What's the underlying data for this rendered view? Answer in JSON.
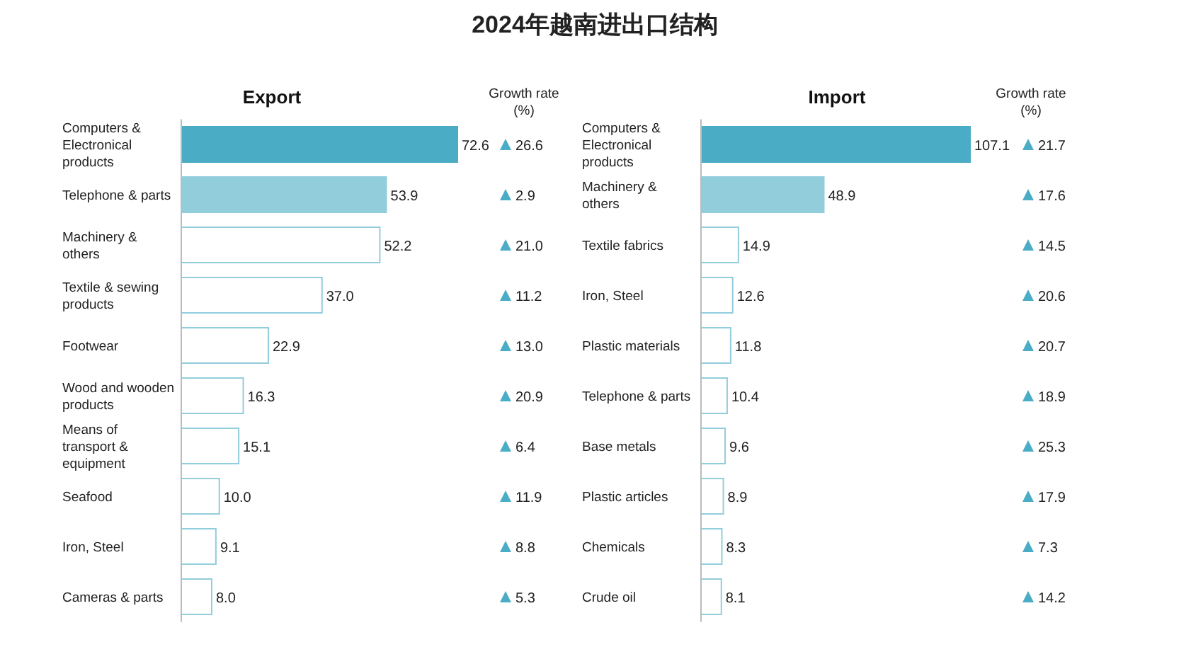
{
  "chart_data": [
    {
      "type": "other",
      "title": "2024年越南进出口结构"
    },
    {
      "type": "bar",
      "orientation": "horizontal",
      "title": "Export",
      "categories": [
        "Computers & Electronical products",
        "Telephone & parts",
        "Machinery & others",
        "Textile & sewing products",
        "Footwear",
        "Wood and wooden products",
        "Means of transport & equipment",
        "Seafood",
        "Iron, Steel",
        "Cameras & parts"
      ],
      "values": [
        72.6,
        53.9,
        52.2,
        37.0,
        22.9,
        16.3,
        15.1,
        10.0,
        9.1,
        8.0
      ],
      "value_labels": [
        "72.6",
        "53.9",
        "52.2",
        "37.0",
        "22.9",
        "16.3",
        "15.1",
        "10.0",
        "9.1",
        "8.0"
      ],
      "colors": [
        "#4bacc6",
        "#92cddc",
        "#ffffff",
        "#ffffff",
        "#ffffff",
        "#ffffff",
        "#ffffff",
        "#ffffff",
        "#ffffff",
        "#ffffff"
      ],
      "annotations": [
        "Growth rate (%)",
        "26.6",
        "2.9",
        "21.0",
        "11.2",
        "13.0",
        "20.9",
        "6.4",
        "11.9",
        "8.8",
        "5.3"
      ]
    },
    {
      "type": "bar",
      "orientation": "horizontal",
      "title": "Import",
      "categories": [
        "Computers & Electronical products",
        "Machinery & others",
        "Textile fabrics",
        "Iron, Steel",
        "Plastic materials",
        "Telephone & parts",
        "Base metals",
        "Plastic articles",
        "Chemicals",
        "Crude oil"
      ],
      "values": [
        107.1,
        48.9,
        14.9,
        12.6,
        11.8,
        10.4,
        9.6,
        8.9,
        8.3,
        8.1
      ],
      "value_labels": [
        "107.1",
        "48.9",
        "14.9",
        "12.6",
        "11.8",
        "10.4",
        "9.6",
        "8.9",
        "8.3",
        "8.1"
      ],
      "colors": [
        "#4bacc6",
        "#92cddc",
        "#ffffff",
        "#ffffff",
        "#ffffff",
        "#ffffff",
        "#ffffff",
        "#ffffff",
        "#ffffff",
        "#ffffff"
      ],
      "annotations": [
        "Growth rate (%)",
        "21.7",
        "17.6",
        "14.5",
        "20.6",
        "20.7",
        "18.9",
        "25.3",
        "17.9",
        "7.3",
        "14.2"
      ]
    }
  ]
}
